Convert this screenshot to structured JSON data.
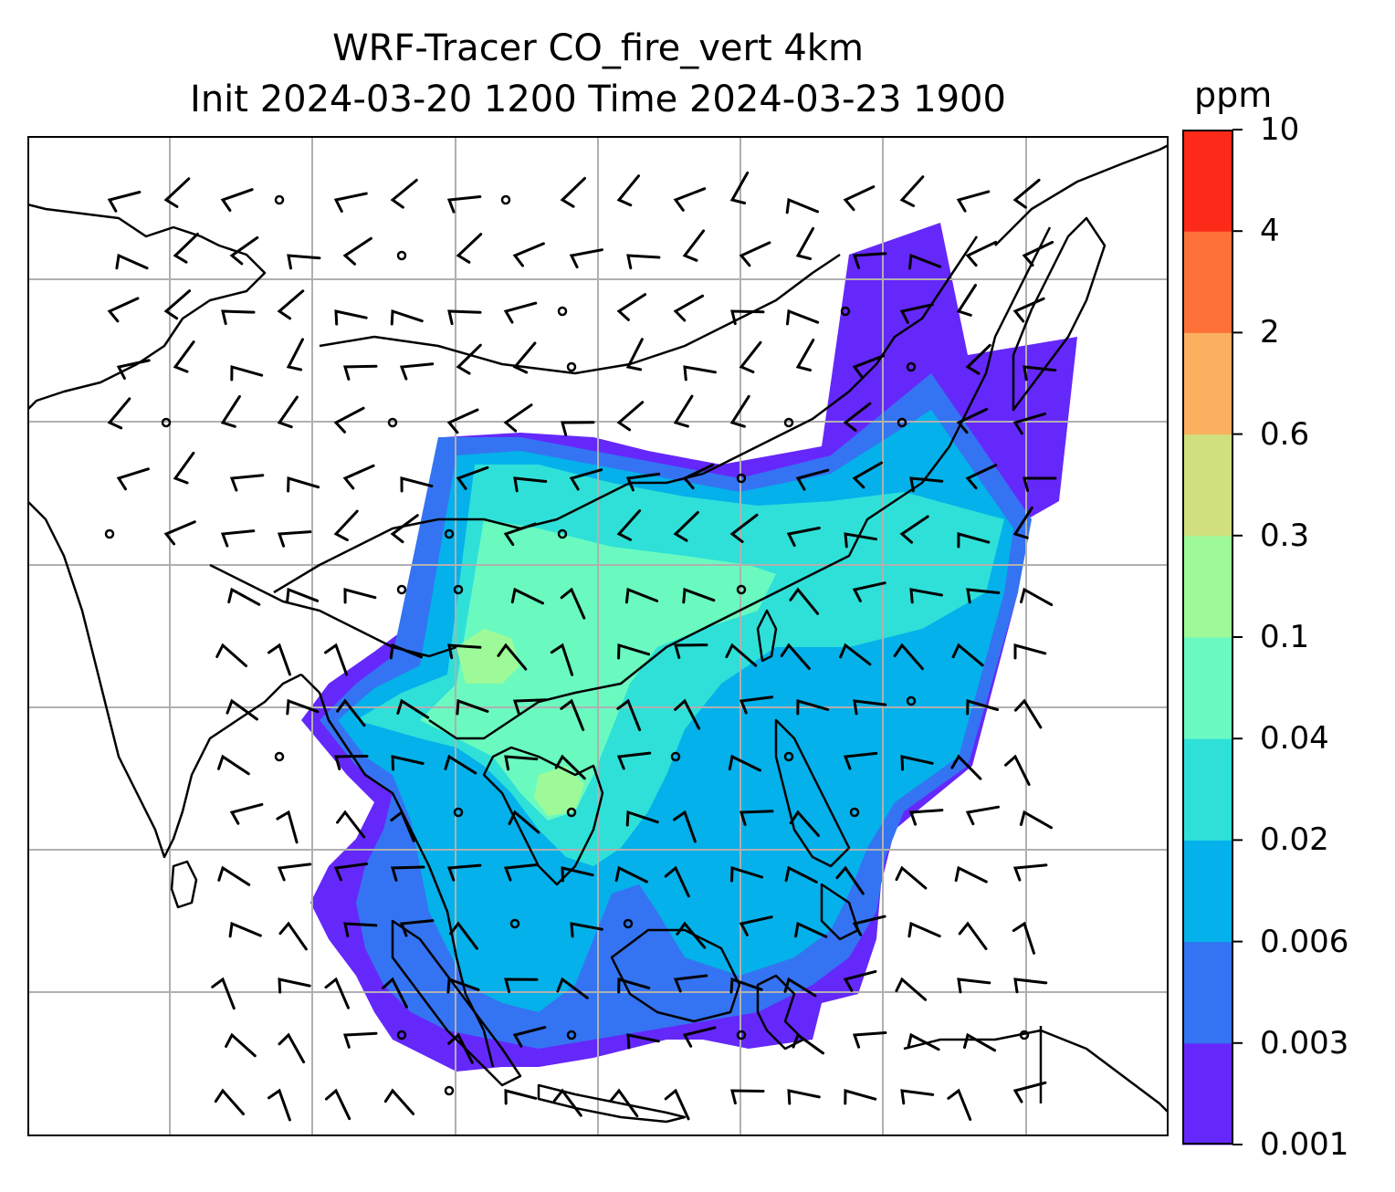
{
  "title": {
    "line1": "WRF-Tracer CO_fire_vert 4km",
    "line2": "Init 2024-03-20 1200 Time 2024-03-23 1900"
  },
  "colorbar": {
    "unit": "ppm",
    "levels": [
      "0.001",
      "0.003",
      "0.006",
      "0.02",
      "0.04",
      "0.1",
      "0.3",
      "0.6",
      "2",
      "4",
      "10"
    ],
    "colors": [
      "#6528fb",
      "#3474f2",
      "#04b1ea",
      "#2fe0d8",
      "#6afac0",
      "#9efa98",
      "#d0e07e",
      "#fbb060",
      "#fd7138",
      "#fd2a1a"
    ]
  },
  "map": {
    "features": [
      "gridlines",
      "coastlines",
      "country-borders",
      "co-tracer-fill",
      "wind-barbs",
      "calm-circles"
    ]
  }
}
